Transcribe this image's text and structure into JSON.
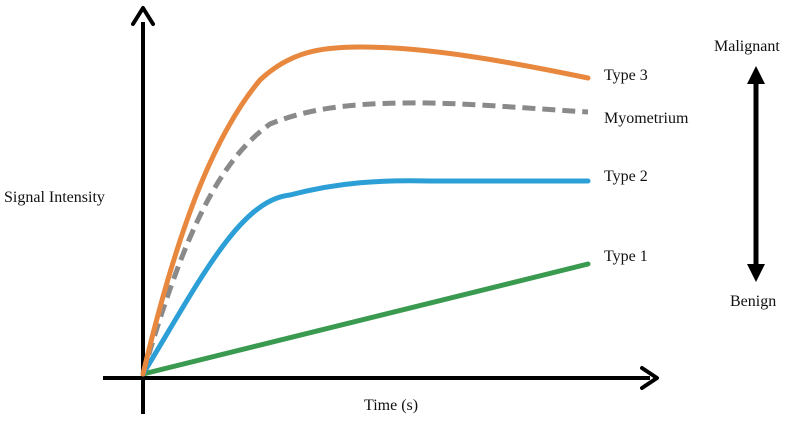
{
  "diagram": {
    "y_axis_label": "Signal Intensity",
    "x_axis_label": "Time (s)",
    "scale_top_label": "Malignant",
    "scale_bottom_label": "Benign"
  },
  "curves": [
    {
      "id": "type3",
      "label": "Type 3",
      "color": "#e8883e",
      "style": "solid"
    },
    {
      "id": "myometrium",
      "label": "Myometrium",
      "color": "#8a8a8a",
      "style": "dashed"
    },
    {
      "id": "type2",
      "label": "Type 2",
      "color": "#2c9fd6",
      "style": "solid"
    },
    {
      "id": "type1",
      "label": "Type 1",
      "color": "#3a9a4f",
      "style": "solid"
    }
  ],
  "colors": {
    "axes": "#000000",
    "text": "#111111"
  }
}
